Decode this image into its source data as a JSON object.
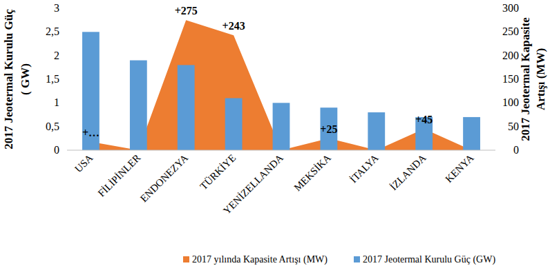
{
  "chart_data": {
    "type": "bar",
    "categories": [
      "USA",
      "FİLİPİNLER",
      "ENDONEZYA",
      "TÜRKİYE",
      "YENİZELLANDA",
      "MEKSİKA",
      "İTALYA",
      "İZLANDA",
      "KENYA"
    ],
    "series": [
      {
        "name": "2017 yılında Kapasite Artışı (MW)",
        "type": "area",
        "axis": "y2",
        "color": "#ed7d31",
        "values": [
          18,
          0,
          275,
          243,
          0,
          25,
          0,
          45,
          0
        ],
        "data_labels": true,
        "value_labels": [
          "+…",
          null,
          "+275",
          "+243",
          null,
          "+25",
          null,
          "+45",
          null
        ]
      },
      {
        "name": "2017 Jeotermal Kurulu Güç (GW)",
        "type": "bar",
        "color": "#5b9bd5",
        "values": [
          2.5,
          1.9,
          1.8,
          1.1,
          1.0,
          0.9,
          0.8,
          0.7,
          0.7
        ]
      }
    ],
    "ylabel": [
      "2017  Jeotermal Kurulu Güç",
      "( GW)"
    ],
    "y2label": [
      "2017 Jeotermal Kapasite",
      "Artışı  (MW)"
    ],
    "ylim": [
      0,
      3
    ],
    "yticks": [
      0,
      {
        "value": 0.5,
        "label": "0,5"
      },
      1,
      {
        "value": 1.5,
        "label": "1,5"
      },
      2,
      {
        "value": 2.5,
        "label": "2,5"
      },
      3
    ],
    "y2lim": [
      0,
      300
    ],
    "y2ticks": [
      0,
      50,
      100,
      150,
      200,
      250,
      300
    ],
    "grid": false,
    "legend": "bottom"
  }
}
